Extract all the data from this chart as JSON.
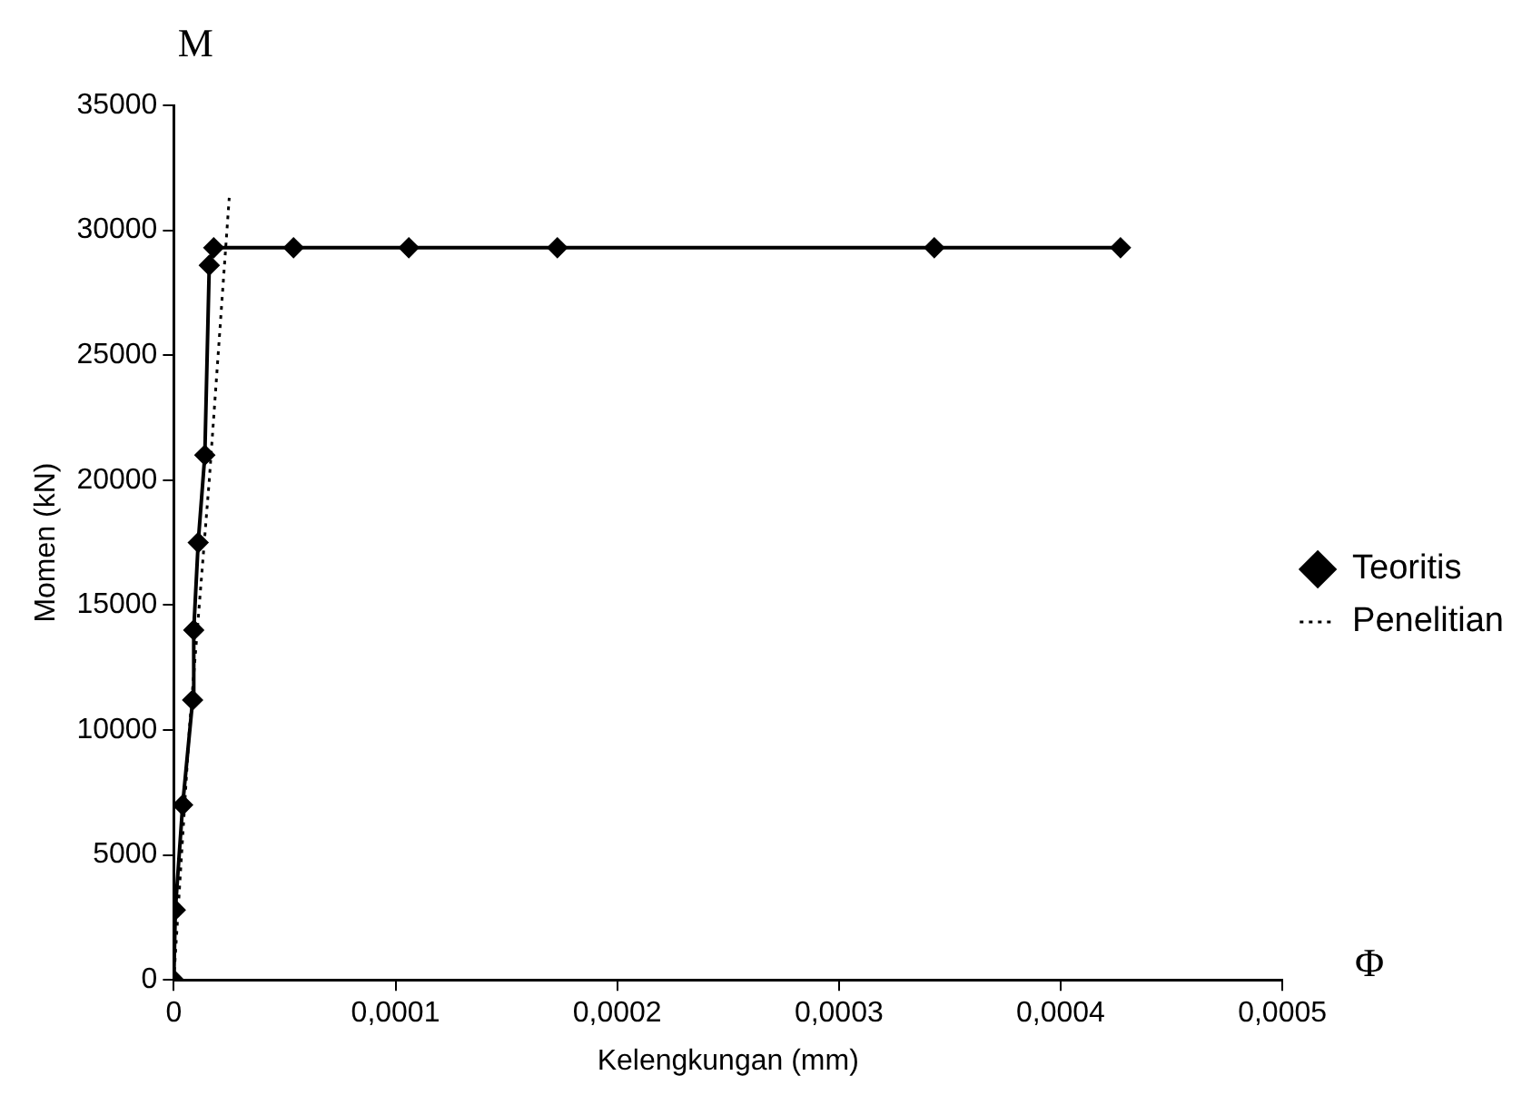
{
  "chart_data": {
    "type": "line",
    "xlabel": "Kelengkungan (mm)",
    "ylabel": "Momen (kN)",
    "annotations": [
      "M",
      "Φ"
    ],
    "xlim": [
      0,
      0.0005
    ],
    "xticks": [
      0,
      {
        "value": 0.0001,
        "label": "0,0001"
      },
      {
        "value": 0.0002,
        "label": "0,0002"
      },
      {
        "value": 0.0003,
        "label": "0,0003"
      },
      {
        "value": 0.0004,
        "label": "0,0004"
      },
      {
        "value": 0.0005,
        "label": "0,0005"
      }
    ],
    "ylim": [
      0,
      35000
    ],
    "yticks": [
      0,
      5000,
      10000,
      15000,
      20000,
      25000,
      30000,
      35000
    ],
    "grid": false,
    "legend": "right",
    "series": [
      {
        "name": "Teoritis",
        "color": "#000000",
        "marker": "diamond",
        "line_style": "solid",
        "x": [
          0,
          7e-07,
          4e-06,
          8.5e-06,
          9e-06,
          1.1e-05,
          1.4e-05,
          1.6e-05,
          1.8e-05,
          5.4e-05,
          0.000106,
          0.000173,
          0.000343,
          0.000427
        ],
        "values": [
          0,
          2800,
          7000,
          11200,
          14000,
          17500,
          21000,
          28600,
          29300,
          29300,
          29300,
          29300,
          29300,
          29300
        ]
      },
      {
        "name": "Penelitian",
        "color": "#000000",
        "marker": "none",
        "line_style": "dotted",
        "x": [
          0,
          7e-06,
          1.6e-05,
          2.5e-05
        ],
        "values": [
          0,
          10000,
          20000,
          31300
        ]
      }
    ]
  }
}
